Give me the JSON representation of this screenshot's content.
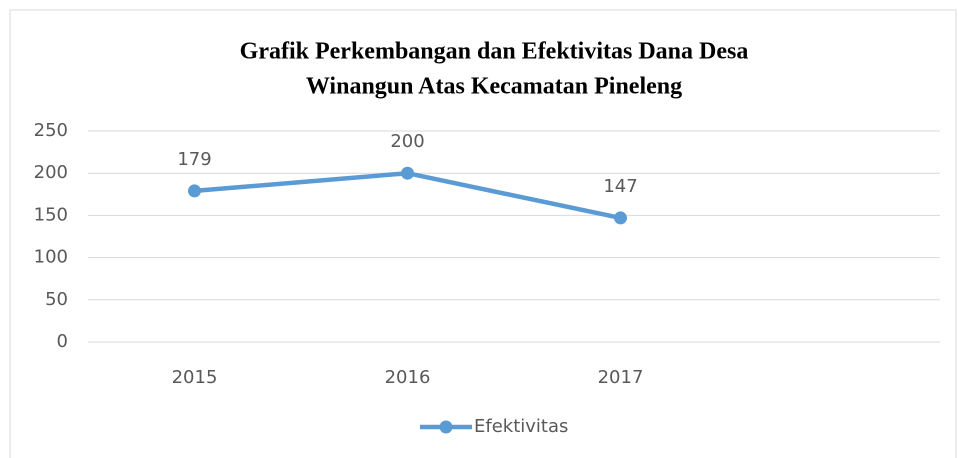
{
  "chart_data": {
    "type": "line",
    "title": [
      "Grafik Perkembangan dan Efektivitas Dana Desa",
      "Winangun Atas Kecamatan Pineleng"
    ],
    "categories": [
      "2015",
      "2016",
      "2017",
      null
    ],
    "series": [
      {
        "name": "Efektivitas",
        "color": "#5b9bd5",
        "values": [
          179,
          200,
          147,
          null
        ]
      }
    ],
    "ylim": [
      0,
      250
    ],
    "yticks": [
      0,
      50,
      100,
      150,
      200,
      250
    ],
    "grid": true,
    "legend": "bottom"
  }
}
